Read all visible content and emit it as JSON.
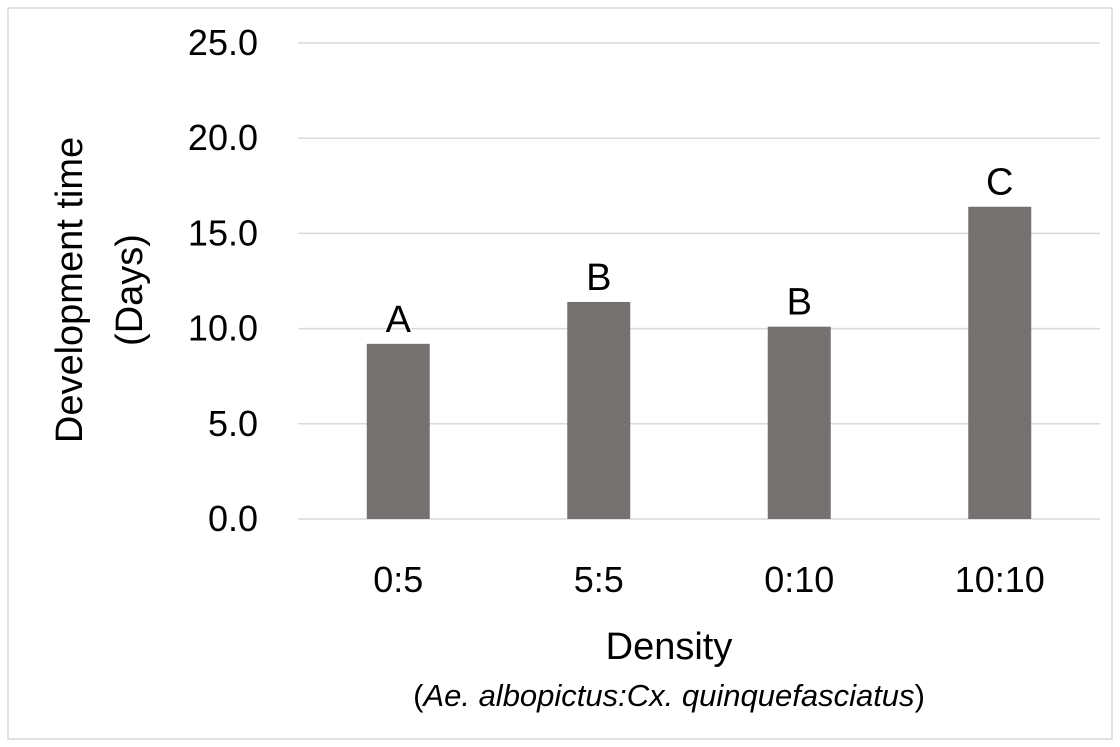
{
  "chart_data": {
    "type": "bar",
    "title": "",
    "categories": [
      "0:5",
      "5:5",
      "0:10",
      "10:10"
    ],
    "values": [
      9.2,
      11.4,
      10.1,
      16.4
    ],
    "bar_labels": [
      "A",
      "B",
      "B",
      "C"
    ],
    "xlabel": "Density",
    "xlabel_sub": {
      "open": "(",
      "italic": "Ae. albopictus:Cx. quinquefasciatus",
      "close": ")"
    },
    "ylabel_line1": "Development time",
    "ylabel_line2": "(Days)",
    "ylim": [
      0,
      25
    ],
    "yticks": [
      "0.0",
      "5.0",
      "10.0",
      "15.0",
      "20.0",
      "25.0"
    ],
    "ytick_values": [
      0,
      5,
      10,
      15,
      20,
      25
    ],
    "grid": true,
    "legend": "none",
    "colors": {
      "bar": "#767171",
      "grid": "#d9d9d9",
      "frame": "#d9d9d9"
    }
  }
}
